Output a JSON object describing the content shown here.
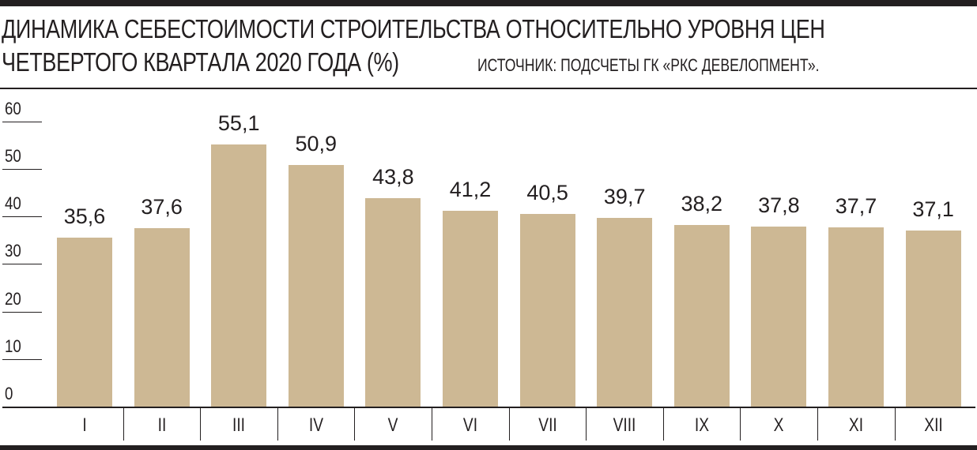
{
  "header": {
    "title_line1": "ДИНАМИКА СЕБЕСТОИМОСТИ СТРОИТЕЛЬСТВА ОТНОСИТЕЛЬНО УРОВНЯ ЦЕН",
    "title_line2": "ЧЕТВЕРТОГО КВАРТАЛА 2020 ГОДА (%)",
    "source": "ИСТОЧНИК: ПОДСЧЕТЫ ГК «РКС ДЕВЕЛОПМЕНТ»."
  },
  "colors": {
    "bar": "#cdb894",
    "ink": "#231f20"
  },
  "yticks": [
    "0",
    "10",
    "20",
    "30",
    "40",
    "50",
    "60"
  ],
  "chart_data": {
    "type": "bar",
    "title": "ДИНАМИКА СЕБЕСТОИМОСТИ СТРОИТЕЛЬСТВА ОТНОСИТЕЛЬНО УРОВНЯ ЦЕН ЧЕТВЕРТОГО КВАРТАЛА 2020 ГОДА (%)",
    "subtitle": "ИСТОЧНИК: ПОДСЧЕТЫ ГК «РКС ДЕВЕЛОПМЕНТ».",
    "categories": [
      "I",
      "II",
      "III",
      "IV",
      "V",
      "VI",
      "VII",
      "VIII",
      "IX",
      "X",
      "XI",
      "XII"
    ],
    "values": [
      35.6,
      37.6,
      55.1,
      50.9,
      43.8,
      41.2,
      40.5,
      39.7,
      38.2,
      37.8,
      37.7,
      37.1
    ],
    "value_labels": [
      "35,6",
      "37,6",
      "55,1",
      "50,9",
      "43,8",
      "41,2",
      "40,5",
      "39,7",
      "38,2",
      "37,8",
      "37,7",
      "37,1"
    ],
    "xlabel": "",
    "ylabel": "",
    "ylim": [
      0,
      60
    ],
    "yticks": [
      0,
      10,
      20,
      30,
      40,
      50,
      60
    ],
    "grid": false,
    "legend": "none"
  }
}
